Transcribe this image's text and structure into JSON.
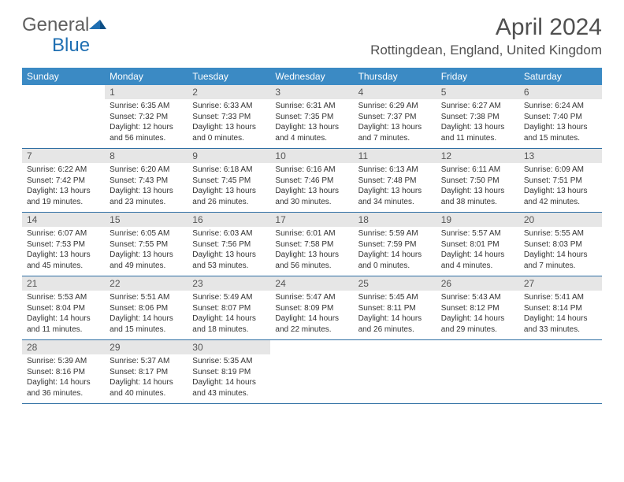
{
  "brand": {
    "name_a": "General",
    "name_b": "Blue"
  },
  "title": "April 2024",
  "location": "Rottingdean, England, United Kingdom",
  "colors": {
    "header_bg": "#3b8ac4",
    "header_text": "#ffffff",
    "daynum_bg": "#e6e6e6",
    "rule": "#2f6fa3",
    "body_text": "#333333",
    "title_text": "#505050"
  },
  "day_headers": [
    "Sunday",
    "Monday",
    "Tuesday",
    "Wednesday",
    "Thursday",
    "Friday",
    "Saturday"
  ],
  "weeks": [
    [
      {
        "n": "",
        "sunrise": "",
        "sunset": "",
        "daylight": ""
      },
      {
        "n": "1",
        "sunrise": "Sunrise: 6:35 AM",
        "sunset": "Sunset: 7:32 PM",
        "daylight": "Daylight: 12 hours and 56 minutes."
      },
      {
        "n": "2",
        "sunrise": "Sunrise: 6:33 AM",
        "sunset": "Sunset: 7:33 PM",
        "daylight": "Daylight: 13 hours and 0 minutes."
      },
      {
        "n": "3",
        "sunrise": "Sunrise: 6:31 AM",
        "sunset": "Sunset: 7:35 PM",
        "daylight": "Daylight: 13 hours and 4 minutes."
      },
      {
        "n": "4",
        "sunrise": "Sunrise: 6:29 AM",
        "sunset": "Sunset: 7:37 PM",
        "daylight": "Daylight: 13 hours and 7 minutes."
      },
      {
        "n": "5",
        "sunrise": "Sunrise: 6:27 AM",
        "sunset": "Sunset: 7:38 PM",
        "daylight": "Daylight: 13 hours and 11 minutes."
      },
      {
        "n": "6",
        "sunrise": "Sunrise: 6:24 AM",
        "sunset": "Sunset: 7:40 PM",
        "daylight": "Daylight: 13 hours and 15 minutes."
      }
    ],
    [
      {
        "n": "7",
        "sunrise": "Sunrise: 6:22 AM",
        "sunset": "Sunset: 7:42 PM",
        "daylight": "Daylight: 13 hours and 19 minutes."
      },
      {
        "n": "8",
        "sunrise": "Sunrise: 6:20 AM",
        "sunset": "Sunset: 7:43 PM",
        "daylight": "Daylight: 13 hours and 23 minutes."
      },
      {
        "n": "9",
        "sunrise": "Sunrise: 6:18 AM",
        "sunset": "Sunset: 7:45 PM",
        "daylight": "Daylight: 13 hours and 26 minutes."
      },
      {
        "n": "10",
        "sunrise": "Sunrise: 6:16 AM",
        "sunset": "Sunset: 7:46 PM",
        "daylight": "Daylight: 13 hours and 30 minutes."
      },
      {
        "n": "11",
        "sunrise": "Sunrise: 6:13 AM",
        "sunset": "Sunset: 7:48 PM",
        "daylight": "Daylight: 13 hours and 34 minutes."
      },
      {
        "n": "12",
        "sunrise": "Sunrise: 6:11 AM",
        "sunset": "Sunset: 7:50 PM",
        "daylight": "Daylight: 13 hours and 38 minutes."
      },
      {
        "n": "13",
        "sunrise": "Sunrise: 6:09 AM",
        "sunset": "Sunset: 7:51 PM",
        "daylight": "Daylight: 13 hours and 42 minutes."
      }
    ],
    [
      {
        "n": "14",
        "sunrise": "Sunrise: 6:07 AM",
        "sunset": "Sunset: 7:53 PM",
        "daylight": "Daylight: 13 hours and 45 minutes."
      },
      {
        "n": "15",
        "sunrise": "Sunrise: 6:05 AM",
        "sunset": "Sunset: 7:55 PM",
        "daylight": "Daylight: 13 hours and 49 minutes."
      },
      {
        "n": "16",
        "sunrise": "Sunrise: 6:03 AM",
        "sunset": "Sunset: 7:56 PM",
        "daylight": "Daylight: 13 hours and 53 minutes."
      },
      {
        "n": "17",
        "sunrise": "Sunrise: 6:01 AM",
        "sunset": "Sunset: 7:58 PM",
        "daylight": "Daylight: 13 hours and 56 minutes."
      },
      {
        "n": "18",
        "sunrise": "Sunrise: 5:59 AM",
        "sunset": "Sunset: 7:59 PM",
        "daylight": "Daylight: 14 hours and 0 minutes."
      },
      {
        "n": "19",
        "sunrise": "Sunrise: 5:57 AM",
        "sunset": "Sunset: 8:01 PM",
        "daylight": "Daylight: 14 hours and 4 minutes."
      },
      {
        "n": "20",
        "sunrise": "Sunrise: 5:55 AM",
        "sunset": "Sunset: 8:03 PM",
        "daylight": "Daylight: 14 hours and 7 minutes."
      }
    ],
    [
      {
        "n": "21",
        "sunrise": "Sunrise: 5:53 AM",
        "sunset": "Sunset: 8:04 PM",
        "daylight": "Daylight: 14 hours and 11 minutes."
      },
      {
        "n": "22",
        "sunrise": "Sunrise: 5:51 AM",
        "sunset": "Sunset: 8:06 PM",
        "daylight": "Daylight: 14 hours and 15 minutes."
      },
      {
        "n": "23",
        "sunrise": "Sunrise: 5:49 AM",
        "sunset": "Sunset: 8:07 PM",
        "daylight": "Daylight: 14 hours and 18 minutes."
      },
      {
        "n": "24",
        "sunrise": "Sunrise: 5:47 AM",
        "sunset": "Sunset: 8:09 PM",
        "daylight": "Daylight: 14 hours and 22 minutes."
      },
      {
        "n": "25",
        "sunrise": "Sunrise: 5:45 AM",
        "sunset": "Sunset: 8:11 PM",
        "daylight": "Daylight: 14 hours and 26 minutes."
      },
      {
        "n": "26",
        "sunrise": "Sunrise: 5:43 AM",
        "sunset": "Sunset: 8:12 PM",
        "daylight": "Daylight: 14 hours and 29 minutes."
      },
      {
        "n": "27",
        "sunrise": "Sunrise: 5:41 AM",
        "sunset": "Sunset: 8:14 PM",
        "daylight": "Daylight: 14 hours and 33 minutes."
      }
    ],
    [
      {
        "n": "28",
        "sunrise": "Sunrise: 5:39 AM",
        "sunset": "Sunset: 8:16 PM",
        "daylight": "Daylight: 14 hours and 36 minutes."
      },
      {
        "n": "29",
        "sunrise": "Sunrise: 5:37 AM",
        "sunset": "Sunset: 8:17 PM",
        "daylight": "Daylight: 14 hours and 40 minutes."
      },
      {
        "n": "30",
        "sunrise": "Sunrise: 5:35 AM",
        "sunset": "Sunset: 8:19 PM",
        "daylight": "Daylight: 14 hours and 43 minutes."
      },
      {
        "n": "",
        "sunrise": "",
        "sunset": "",
        "daylight": ""
      },
      {
        "n": "",
        "sunrise": "",
        "sunset": "",
        "daylight": ""
      },
      {
        "n": "",
        "sunrise": "",
        "sunset": "",
        "daylight": ""
      },
      {
        "n": "",
        "sunrise": "",
        "sunset": "",
        "daylight": ""
      }
    ]
  ]
}
